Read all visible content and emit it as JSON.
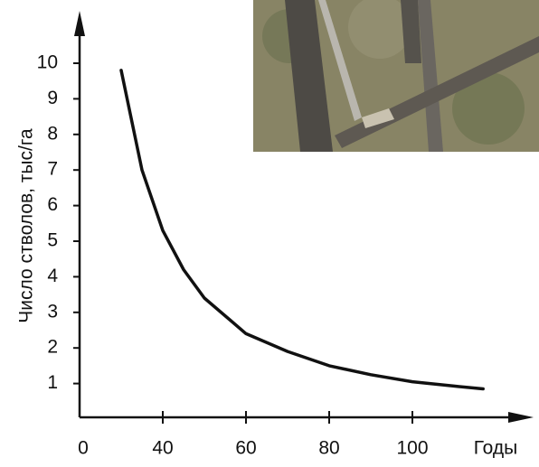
{
  "chart_data": {
    "type": "line",
    "y_label": "Число стволов, тыс/га",
    "x_label": "Годы",
    "x_origin_label": "0",
    "x": [
      30,
      35,
      40,
      45,
      50,
      60,
      70,
      80,
      90,
      100,
      110,
      117
    ],
    "series": [
      {
        "color": "#111111",
        "values": [
          9.8,
          7.0,
          5.3,
          4.2,
          3.4,
          2.4,
          1.9,
          1.5,
          1.25,
          1.05,
          0.93,
          0.85
        ]
      }
    ],
    "xlim": [
      20,
      126
    ],
    "xticks": [
      40,
      60,
      80,
      100
    ],
    "ylim": [
      0,
      11
    ],
    "yticks": [
      1,
      2,
      3,
      4,
      5,
      6,
      7,
      8,
      9,
      10
    ]
  }
}
